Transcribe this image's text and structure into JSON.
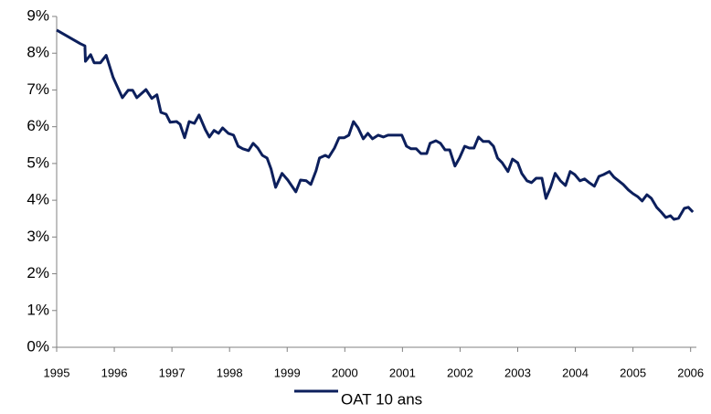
{
  "chart_data": {
    "type": "line",
    "x": [
      1995.0,
      1995.41,
      1995.49,
      1995.5,
      1995.59,
      1995.65,
      1995.76,
      1995.86,
      1995.98,
      1996.14,
      1996.24,
      1996.32,
      1996.39,
      1996.55,
      1996.65,
      1996.74,
      1996.81,
      1996.9,
      1996.97,
      1997.08,
      1997.14,
      1997.22,
      1997.3,
      1997.39,
      1997.47,
      1997.58,
      1997.65,
      1997.73,
      1997.81,
      1997.88,
      1997.98,
      1998.07,
      1998.15,
      1998.23,
      1998.33,
      1998.41,
      1998.49,
      1998.57,
      1998.65,
      1998.72,
      1998.8,
      1998.91,
      1999.01,
      1999.15,
      1999.23,
      1999.33,
      1999.41,
      1999.5,
      1999.56,
      1999.66,
      1999.72,
      1999.82,
      1999.9,
      1999.99,
      2000.07,
      2000.15,
      2000.23,
      2000.32,
      2000.4,
      2000.48,
      2000.58,
      2000.67,
      2000.75,
      2000.99,
      2001.07,
      2001.15,
      2001.24,
      2001.32,
      2001.42,
      2001.48,
      2001.58,
      2001.66,
      2001.74,
      2001.82,
      2001.91,
      2001.99,
      2002.08,
      2002.16,
      2002.24,
      2002.32,
      2002.4,
      2002.5,
      2002.58,
      2002.65,
      2002.73,
      2002.83,
      2002.91,
      2003.0,
      2003.07,
      2003.16,
      2003.24,
      2003.32,
      2003.42,
      2003.49,
      2003.57,
      2003.65,
      2003.74,
      2003.83,
      2003.91,
      2003.99,
      2004.08,
      2004.16,
      2004.24,
      2004.33,
      2004.41,
      2004.49,
      2004.59,
      2004.67,
      2004.75,
      2004.83,
      2004.92,
      2005.0,
      2005.08,
      2005.16,
      2005.24,
      2005.32,
      2005.41,
      2005.49,
      2005.57,
      2005.65,
      2005.71,
      2005.79,
      2005.89,
      2005.96,
      2006.04
    ],
    "series": [
      {
        "name": "OAT 10 ans",
        "color": "#0c1f5c",
        "values": [
          8.63,
          8.26,
          8.2,
          7.78,
          7.96,
          7.74,
          7.74,
          7.94,
          7.34,
          6.79,
          6.99,
          6.99,
          6.79,
          7.01,
          6.77,
          6.87,
          6.39,
          6.34,
          6.12,
          6.14,
          6.07,
          5.7,
          6.14,
          6.09,
          6.32,
          5.92,
          5.72,
          5.9,
          5.82,
          5.97,
          5.82,
          5.77,
          5.47,
          5.4,
          5.35,
          5.55,
          5.42,
          5.22,
          5.15,
          4.85,
          4.35,
          4.73,
          4.55,
          4.23,
          4.55,
          4.53,
          4.43,
          4.8,
          5.15,
          5.22,
          5.17,
          5.42,
          5.7,
          5.7,
          5.77,
          6.14,
          5.97,
          5.67,
          5.82,
          5.67,
          5.77,
          5.72,
          5.77,
          5.77,
          5.47,
          5.4,
          5.4,
          5.27,
          5.27,
          5.55,
          5.62,
          5.55,
          5.37,
          5.37,
          4.93,
          5.15,
          5.47,
          5.42,
          5.42,
          5.72,
          5.6,
          5.6,
          5.47,
          5.15,
          5.02,
          4.78,
          5.12,
          5.02,
          4.73,
          4.53,
          4.48,
          4.6,
          4.6,
          4.05,
          4.35,
          4.73,
          4.53,
          4.4,
          4.78,
          4.7,
          4.53,
          4.58,
          4.48,
          4.38,
          4.65,
          4.7,
          4.78,
          4.63,
          4.53,
          4.43,
          4.28,
          4.18,
          4.1,
          3.98,
          4.15,
          4.05,
          3.81,
          3.68,
          3.53,
          3.58,
          3.48,
          3.51,
          3.78,
          3.81,
          3.68
        ]
      }
    ],
    "xlim": [
      1995,
      2006.1
    ],
    "xticks": [
      1995,
      1996,
      1997,
      1998,
      1999,
      2000,
      2001,
      2002,
      2003,
      2004,
      2005,
      2006
    ],
    "ylim": [
      0,
      9
    ],
    "yticks": [
      {
        "value": 0,
        "label": "0%"
      },
      {
        "value": 1,
        "label": "1%"
      },
      {
        "value": 2,
        "label": "2%"
      },
      {
        "value": 3,
        "label": "3%"
      },
      {
        "value": 4,
        "label": "4%"
      },
      {
        "value": 5,
        "label": "5%"
      },
      {
        "value": 6,
        "label": "6%"
      },
      {
        "value": 7,
        "label": "7%"
      },
      {
        "value": 8,
        "label": "8%"
      },
      {
        "value": 9,
        "label": "9%"
      }
    ],
    "grid": false
  }
}
